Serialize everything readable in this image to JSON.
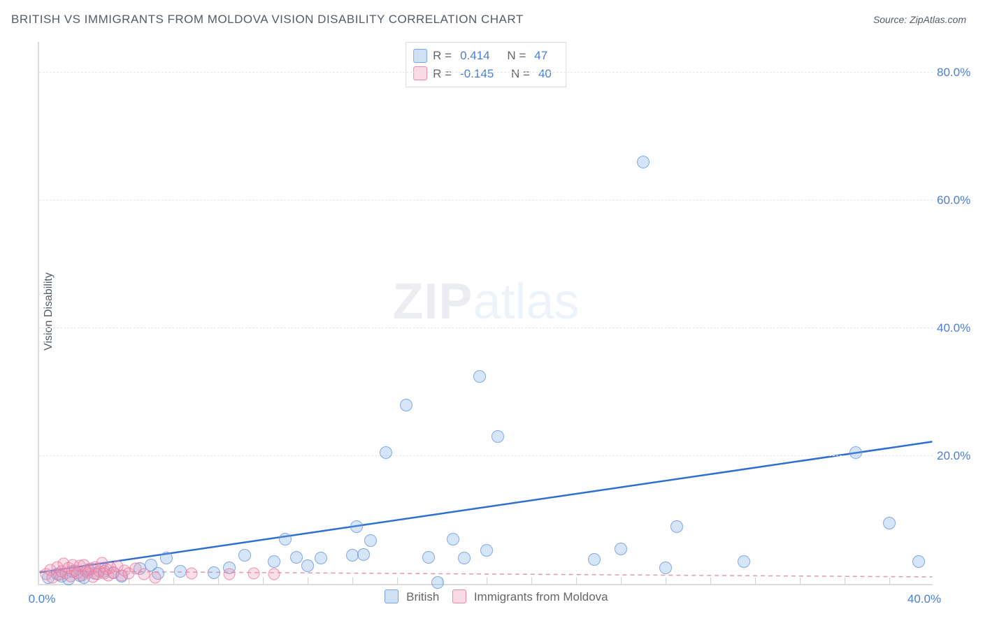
{
  "title": "BRITISH VS IMMIGRANTS FROM MOLDOVA VISION DISABILITY CORRELATION CHART",
  "source": "Source: ZipAtlas.com",
  "ylabel": "Vision Disability",
  "watermark_zip": "ZIP",
  "watermark_atlas": "atlas",
  "chart": {
    "type": "scatter",
    "xlim": [
      0,
      40
    ],
    "ylim": [
      0,
      85
    ],
    "x_ticks_label_left": "0.0%",
    "x_ticks_label_right": "40.0%",
    "y_ticks": [
      {
        "v": 20,
        "label": "20.0%"
      },
      {
        "v": 40,
        "label": "40.0%"
      },
      {
        "v": 60,
        "label": "60.0%"
      },
      {
        "v": 80,
        "label": "80.0%"
      }
    ],
    "x_minor_ticks": [
      2,
      4,
      6,
      8,
      10,
      12,
      14,
      16,
      18,
      20,
      22,
      24,
      26,
      28,
      30,
      32,
      34,
      36,
      38
    ],
    "grid_color": "#e6e6e6",
    "axis_color": "#dcdcdc",
    "background_color": "#ffffff",
    "series": [
      {
        "name": "British",
        "color_fill": "rgba(120,170,230,0.30)",
        "color_stroke": "rgba(100,150,220,0.75)",
        "trend": {
          "x1": 0,
          "y1": 1.8,
          "x2": 40,
          "y2": 22.3,
          "stroke": "#2f6fd0",
          "width": 2.5,
          "dash": "none"
        },
        "R": "0.414",
        "N": "47",
        "points": [
          [
            0.4,
            1.0
          ],
          [
            0.8,
            1.5
          ],
          [
            1.0,
            1.2
          ],
          [
            1.3,
            0.8
          ],
          [
            1.5,
            2.0
          ],
          [
            1.8,
            1.3
          ],
          [
            2.0,
            1.0
          ],
          [
            2.2,
            2.2
          ],
          [
            2.5,
            1.6
          ],
          [
            2.9,
            2.0
          ],
          [
            3.3,
            1.8
          ],
          [
            3.7,
            1.2
          ],
          [
            4.5,
            2.4
          ],
          [
            5.0,
            3.0
          ],
          [
            5.3,
            1.6
          ],
          [
            5.7,
            4.0
          ],
          [
            6.3,
            2.0
          ],
          [
            7.8,
            1.8
          ],
          [
            8.5,
            2.5
          ],
          [
            9.2,
            4.5
          ],
          [
            10.5,
            3.5
          ],
          [
            11.0,
            7.0
          ],
          [
            11.5,
            4.2
          ],
          [
            12.0,
            2.8
          ],
          [
            12.6,
            4.0
          ],
          [
            14.0,
            4.5
          ],
          [
            14.2,
            9.0
          ],
          [
            14.5,
            4.6
          ],
          [
            14.8,
            6.8
          ],
          [
            15.5,
            20.5
          ],
          [
            16.4,
            28.0
          ],
          [
            17.4,
            4.2
          ],
          [
            17.8,
            0.2
          ],
          [
            18.5,
            7.0
          ],
          [
            19.0,
            4.0
          ],
          [
            19.7,
            32.5
          ],
          [
            20.0,
            5.2
          ],
          [
            20.5,
            23.0
          ],
          [
            24.8,
            3.8
          ],
          [
            26.0,
            5.5
          ],
          [
            27.0,
            66.0
          ],
          [
            28.0,
            2.5
          ],
          [
            28.5,
            9.0
          ],
          [
            31.5,
            3.5
          ],
          [
            36.5,
            20.5
          ],
          [
            38.0,
            9.5
          ],
          [
            39.3,
            3.5
          ]
        ]
      },
      {
        "name": "Immigrants from Moldova",
        "color_fill": "rgba(240,150,180,0.30)",
        "color_stroke": "rgba(230,120,160,0.75)",
        "trend": {
          "x1": 0,
          "y1": 2.0,
          "x2": 40,
          "y2": 1.1,
          "stroke": "#e29aae",
          "width": 1.5,
          "dash": "6 5"
        },
        "R": "-0.145",
        "N": "40",
        "points": [
          [
            0.3,
            1.5
          ],
          [
            0.5,
            2.2
          ],
          [
            0.6,
            1.0
          ],
          [
            0.8,
            2.6
          ],
          [
            0.9,
            1.4
          ],
          [
            1.0,
            2.0
          ],
          [
            1.1,
            3.2
          ],
          [
            1.2,
            1.6
          ],
          [
            1.3,
            2.5
          ],
          [
            1.4,
            1.2
          ],
          [
            1.5,
            3.0
          ],
          [
            1.6,
            2.1
          ],
          [
            1.7,
            1.6
          ],
          [
            1.8,
            2.8
          ],
          [
            1.9,
            1.3
          ],
          [
            2.0,
            3.0
          ],
          [
            2.1,
            2.0
          ],
          [
            2.2,
            1.7
          ],
          [
            2.3,
            2.4
          ],
          [
            2.4,
            1.1
          ],
          [
            2.5,
            2.6
          ],
          [
            2.6,
            1.5
          ],
          [
            2.7,
            2.0
          ],
          [
            2.8,
            3.3
          ],
          [
            2.9,
            1.6
          ],
          [
            3.0,
            2.3
          ],
          [
            3.1,
            1.3
          ],
          [
            3.2,
            2.5
          ],
          [
            3.3,
            1.8
          ],
          [
            3.5,
            2.7
          ],
          [
            3.7,
            1.3
          ],
          [
            3.8,
            2.1
          ],
          [
            4.0,
            1.6
          ],
          [
            4.3,
            2.4
          ],
          [
            4.7,
            1.5
          ],
          [
            5.2,
            1.0
          ],
          [
            6.8,
            1.6
          ],
          [
            8.5,
            1.5
          ],
          [
            9.6,
            1.6
          ],
          [
            10.5,
            1.5
          ]
        ]
      }
    ]
  },
  "legend_top": {
    "rows": [
      {
        "swatch": "blue",
        "r_label": "R =",
        "r_val": "0.414",
        "n_label": "N =",
        "n_val": "47"
      },
      {
        "swatch": "pink",
        "r_label": "R =",
        "r_val": "-0.145",
        "n_label": "N =",
        "n_val": "40"
      }
    ]
  },
  "legend_bottom": {
    "s1_label": "British",
    "s2_label": "Immigrants from Moldova"
  }
}
